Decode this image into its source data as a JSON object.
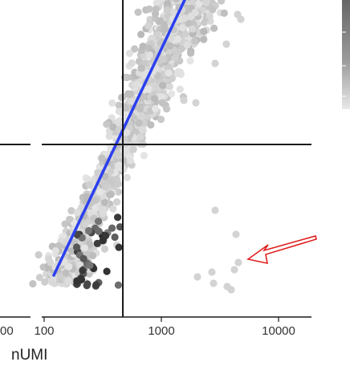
{
  "chart_data": {
    "type": "scatter",
    "xlabel": "nUMI",
    "ylabel": "",
    "title": "",
    "x_scale": "log10",
    "xlim": [
      80,
      22000
    ],
    "x_ticks": [
      {
        "value": 100,
        "label": "100"
      },
      {
        "value": 1000,
        "label": "1000"
      },
      {
        "value": 10000,
        "label": "10000"
      }
    ],
    "left_panel_tick_label": "00",
    "reference_lines": {
      "vertical_x": 500
    },
    "fit_line": {
      "color": "#2b3ff0"
    },
    "highlight_arrow": {
      "color": "#e02020"
    },
    "color_legend": {
      "type": "gradient",
      "high_color": "#555555",
      "low_color": "#e6e6e6"
    },
    "grid": false
  }
}
